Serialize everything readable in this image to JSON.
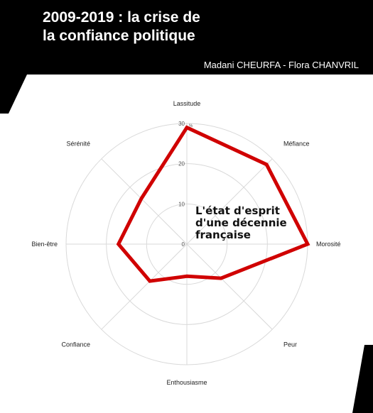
{
  "header": {
    "title_line1": "2009-2019 : la crise de",
    "title_line2": "la confiance politique",
    "authors": "Madani CHEURFA - Flora CHANVRIL"
  },
  "colors": {
    "background": "#000000",
    "panel": "#ffffff",
    "series": "#d00000",
    "grid": "#d9d9d9"
  },
  "chart_data": {
    "type": "radar",
    "axes": [
      "Lassitude",
      "Méfiance",
      "Morosité",
      "Peur",
      "Enthousiasme",
      "Confiance",
      "Bien-être",
      "Sérénité"
    ],
    "ticks": [
      "0",
      "10",
      "20",
      "30"
    ],
    "tick_unit": "%",
    "rmax": 30,
    "grid": true,
    "series": [
      {
        "values": [
          29,
          28,
          30,
          12,
          8,
          13,
          17,
          16
        ]
      }
    ],
    "overlay_text": [
      "L'état d'esprit",
      "d'une décennie",
      "française"
    ]
  }
}
